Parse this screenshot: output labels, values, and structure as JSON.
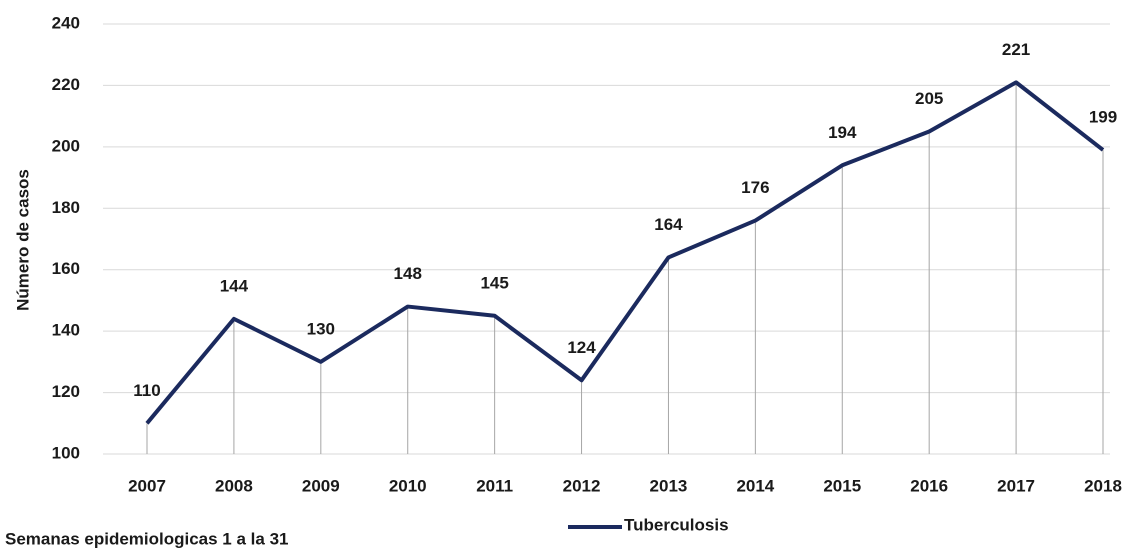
{
  "chart_data": {
    "type": "line",
    "y_label": "Número de casos",
    "note": "Semanas epidemiologicas 1 a la 31",
    "categories": [
      "2007",
      "2008",
      "2009",
      "2010",
      "2011",
      "2012",
      "2013",
      "2014",
      "2015",
      "2016",
      "2017",
      "2018"
    ],
    "series": [
      {
        "name": "Tuberculosis",
        "color": "#1b2a5e",
        "values": [
          110,
          144,
          130,
          148,
          145,
          124,
          164,
          176,
          194,
          205,
          221,
          199
        ]
      }
    ],
    "ylim": [
      100,
      240
    ],
    "yticks": [
      100,
      120,
      140,
      160,
      180,
      200,
      220,
      240
    ],
    "grid": true,
    "drop_lines": true,
    "legend": "bottom"
  }
}
